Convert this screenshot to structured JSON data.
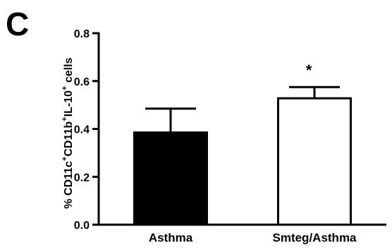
{
  "panel_label": "C",
  "chart_data": {
    "type": "bar",
    "categories": [
      "Asthma",
      "Smteg/Asthma"
    ],
    "values": [
      0.385,
      0.528
    ],
    "errors": [
      0.1,
      0.047
    ],
    "bar_colors": [
      "#000000",
      "#ffffff"
    ],
    "ylabel_parts": [
      {
        "text": "% CD11c",
        "sup": false
      },
      {
        "text": "+",
        "sup": true
      },
      {
        "text": "CD11b",
        "sup": false
      },
      {
        "text": "+",
        "sup": true
      },
      {
        "text": "IL-10",
        "sup": false
      },
      {
        "text": "+",
        "sup": true
      },
      {
        "text": " cells",
        "sup": false
      }
    ],
    "ylim": [
      0,
      0.8
    ],
    "yticks": [
      "0.0",
      "0.2",
      "0.4",
      "0.6",
      "0.8"
    ],
    "annotations": [
      {
        "category": "Smteg/Asthma",
        "text": "*"
      }
    ],
    "grid": false,
    "legend": "none"
  }
}
